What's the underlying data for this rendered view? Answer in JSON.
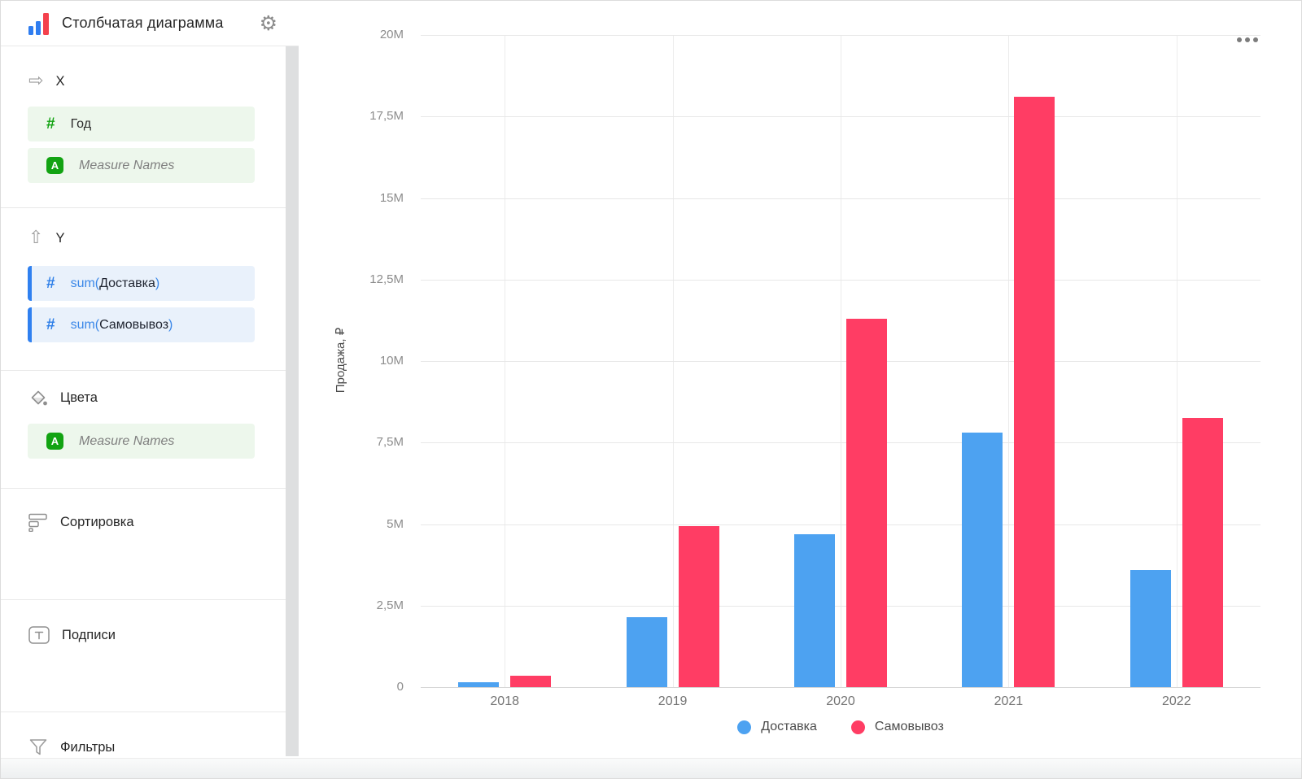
{
  "header": {
    "title": "Столбчатая диаграмма"
  },
  "sidebar": {
    "x": {
      "label": "X",
      "fields": [
        {
          "text": "Год"
        },
        {
          "text": "Measure Names"
        }
      ]
    },
    "y": {
      "label": "Y",
      "fields": [
        {
          "prefix": "sum(",
          "name": "Доставка",
          "suffix": ")"
        },
        {
          "prefix": "sum(",
          "name": "Самовывоз",
          "suffix": ")"
        }
      ]
    },
    "colors": {
      "label": "Цвета",
      "fields": [
        {
          "text": "Measure Names"
        }
      ]
    },
    "sorting": {
      "label": "Сортировка"
    },
    "labels": {
      "label": "Подписи"
    },
    "filters": {
      "label": "Фильтры"
    }
  },
  "chart_data": {
    "type": "bar",
    "categories": [
      "2018",
      "2019",
      "2020",
      "2021",
      "2022"
    ],
    "series": [
      {
        "name": "Доставка",
        "color": "#4DA2F1",
        "values": [
          150000,
          2150000,
          4700000,
          7800000,
          3600000
        ]
      },
      {
        "name": "Самовывоз",
        "color": "#FF3D64",
        "values": [
          350000,
          4950000,
          11300000,
          18100000,
          8250000
        ]
      }
    ],
    "title": "",
    "xlabel": "",
    "ylabel": "Продажа, ₽",
    "ylim": [
      0,
      20000000
    ],
    "ytick_step": 2500000,
    "ytick_labels": [
      "0",
      "2,5M",
      "5M",
      "7,5M",
      "10M",
      "12,5M",
      "15M",
      "17,5M",
      "20M"
    ],
    "grid": true,
    "legend_position": "bottom"
  }
}
